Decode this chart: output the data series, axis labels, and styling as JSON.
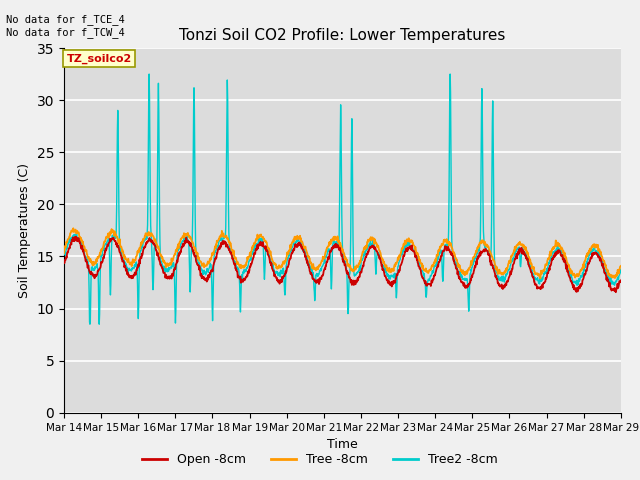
{
  "title": "Tonzi Soil CO2 Profile: Lower Temperatures",
  "xlabel": "Time",
  "ylabel": "Soil Temperatures (C)",
  "top_left_text": "No data for f_TCE_4\nNo data for f_TCW_4",
  "legend_label": "TZ_soilco2",
  "ylim": [
    0,
    35
  ],
  "yticks": [
    0,
    5,
    10,
    15,
    20,
    25,
    30,
    35
  ],
  "x_labels": [
    "Mar 14",
    "Mar 15",
    "Mar 16",
    "Mar 17",
    "Mar 18",
    "Mar 19",
    "Mar 20",
    "Mar 21",
    "Mar 22",
    "Mar 23",
    "Mar 24",
    "Mar 25",
    "Mar 26",
    "Mar 27",
    "Mar 28",
    "Mar 29"
  ],
  "open_color": "#cc0000",
  "tree_color": "#ff9900",
  "tree2_color": "#00cccc",
  "plot_bg": "#dcdcdc",
  "legend_entries": [
    "Open -8cm",
    "Tree -8cm",
    "Tree2 -8cm"
  ]
}
